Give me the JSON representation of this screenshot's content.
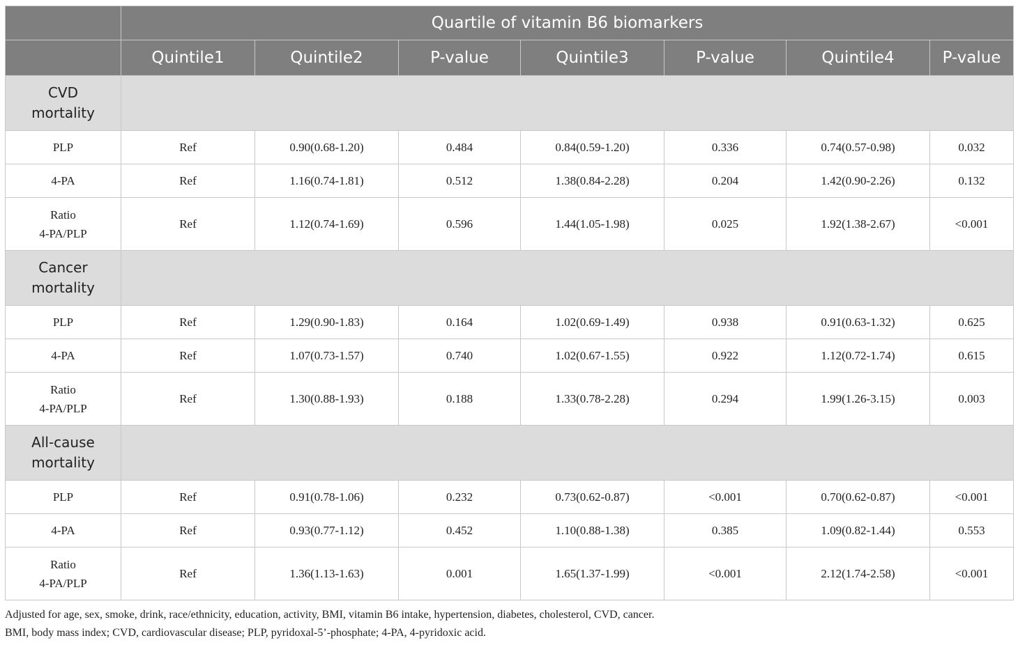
{
  "table": {
    "title": "Quartile of vitamin B6 biomarkers",
    "columns": [
      "Quintile1",
      "Quintile2",
      "P-value",
      "Quintile3",
      "P-value",
      "Quintile4",
      "P-value"
    ],
    "groups": [
      {
        "label_line1": "CVD",
        "label_line2": "mortality",
        "rows": [
          {
            "label": "PLP",
            "cells": [
              "Ref",
              "0.90(0.68-1.20)",
              "0.484",
              "0.84(0.59-1.20)",
              "0.336",
              "0.74(0.57-0.98)",
              "0.032"
            ]
          },
          {
            "label": "4-PA",
            "cells": [
              "Ref",
              "1.16(0.74-1.81)",
              "0.512",
              "1.38(0.84-2.28)",
              "0.204",
              "1.42(0.90-2.26)",
              "0.132"
            ]
          },
          {
            "label_line1": "Ratio",
            "label_line2": "4-PA/PLP",
            "cells": [
              "Ref",
              "1.12(0.74-1.69)",
              "0.596",
              "1.44(1.05-1.98)",
              "0.025",
              "1.92(1.38-2.67)",
              "<0.001"
            ]
          }
        ]
      },
      {
        "label_line1": "Cancer",
        "label_line2": "mortality",
        "rows": [
          {
            "label": "PLP",
            "cells": [
              "Ref",
              "1.29(0.90-1.83)",
              "0.164",
              "1.02(0.69-1.49)",
              "0.938",
              "0.91(0.63-1.32)",
              "0.625"
            ]
          },
          {
            "label": "4-PA",
            "cells": [
              "Ref",
              "1.07(0.73-1.57)",
              "0.740",
              "1.02(0.67-1.55)",
              "0.922",
              "1.12(0.72-1.74)",
              "0.615"
            ]
          },
          {
            "label_line1": "Ratio",
            "label_line2": "4-PA/PLP",
            "cells": [
              "Ref",
              "1.30(0.88-1.93)",
              "0.188",
              "1.33(0.78-2.28)",
              "0.294",
              "1.99(1.26-3.15)",
              "0.003"
            ]
          }
        ]
      },
      {
        "label_line1": "All-cause",
        "label_line2": "mortality",
        "rows": [
          {
            "label": "PLP",
            "cells": [
              "Ref",
              "0.91(0.78-1.06)",
              "0.232",
              "0.73(0.62-0.87)",
              "<0.001",
              "0.70(0.62-0.87)",
              "<0.001"
            ]
          },
          {
            "label": "4-PA",
            "cells": [
              "Ref",
              "0.93(0.77-1.12)",
              "0.452",
              "1.10(0.88-1.38)",
              "0.385",
              "1.09(0.82-1.44)",
              "0.553"
            ]
          },
          {
            "label_line1": "Ratio",
            "label_line2": "4-PA/PLP",
            "cells": [
              "Ref",
              "1.36(1.13-1.63)",
              "0.001",
              "1.65(1.37-1.99)",
              "<0.001",
              "2.12(1.74-2.58)",
              "<0.001"
            ]
          }
        ]
      }
    ]
  },
  "footnotes": [
    "Adjusted for age, sex, smoke, drink, race/ethnicity, education, activity, BMI, vitamin B6 intake, hypertension, diabetes, cholesterol, CVD, cancer.",
    "BMI, body mass index; CVD, cardiovascular disease; PLP, pyridoxal-5’-phosphate; 4-PA, 4-pyridoxic acid."
  ],
  "colors": {
    "header_bg": "#7f7f7f",
    "group_bg": "#dcdcdc",
    "border": "#c8c8c8"
  }
}
